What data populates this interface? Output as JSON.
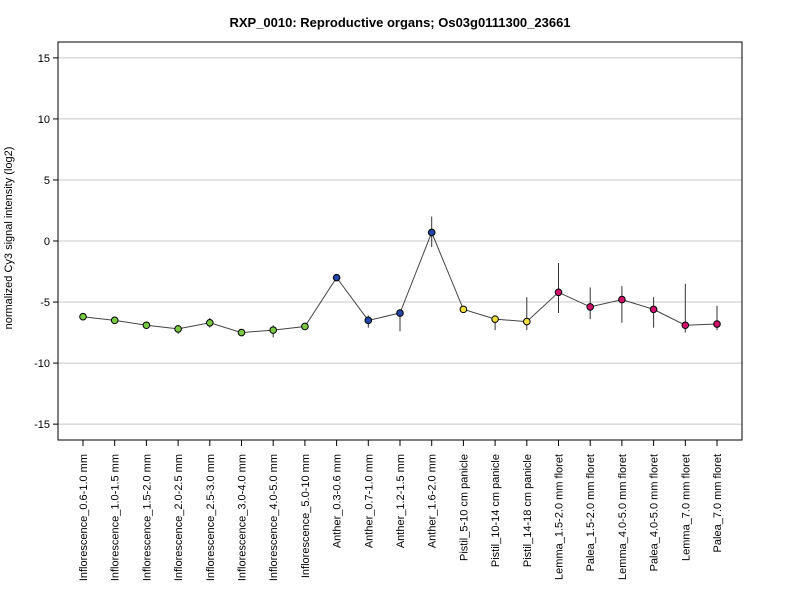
{
  "chart_data": {
    "type": "line",
    "title": "RXP_0010: Reproductive organs; Os03g0111300_23661",
    "ylabel": "normalized Cy3 signal intensity (log2)",
    "xlabel": "",
    "ylim": [
      -16.3,
      16.3
    ],
    "yticks": [
      -15,
      -10,
      -5,
      0,
      5,
      10,
      15
    ],
    "grid": true,
    "categories": [
      "Inflorescence_0.6-1.0 mm",
      "Inflorescence_1.0-1.5 mm",
      "Inflorescence_1.5-2.0 mm",
      "Inflorescence_2.0-2.5 mm",
      "Inflorescence_2.5-3.0 mm",
      "Inflorescence_3.0-4.0 mm",
      "Inflorescence_4.0-5.0 mm",
      "Inflorescence_5.0-10 mm",
      "Anther_0.3-0.6 mm",
      "Anther_0.7-1.0 mm",
      "Anther_1.2-1.5 mm",
      "Anther_1.6-2.0 mm",
      "Pistil_5-10 cm panicle",
      "Pistil_10-14 cm panicle",
      "Pistil_14-18 cm panicle",
      "Lemma_1.5-2.0 mm floret",
      "Palea_1.5-2.0 mm floret",
      "Lemma_4.0-5.0 mm floret",
      "Palea_4.0-5.0 mm floret",
      "Lemma_7.0 mm floret",
      "Palea_7.0 mm floret"
    ],
    "values": [
      -6.2,
      -6.5,
      -6.9,
      -7.2,
      -6.7,
      -7.5,
      -7.3,
      -7.0,
      -3.0,
      -6.5,
      -5.9,
      0.7,
      -5.6,
      -6.4,
      -6.6,
      -4.2,
      -5.4,
      -4.8,
      -5.6,
      -6.9,
      -6.8
    ],
    "error_low": [
      -6.4,
      -6.7,
      -7.0,
      -7.6,
      -7.1,
      -7.6,
      -7.9,
      -7.2,
      -3.1,
      -7.1,
      -7.4,
      -0.5,
      -5.7,
      -7.3,
      -7.3,
      -5.9,
      -6.4,
      -6.7,
      -7.1,
      -7.5,
      -7.3
    ],
    "error_high": [
      -6.0,
      -6.3,
      -6.8,
      -6.9,
      -6.3,
      -7.3,
      -6.9,
      -6.8,
      -2.9,
      -6.1,
      -5.7,
      2.0,
      -5.4,
      -6.1,
      -4.6,
      -1.8,
      -3.8,
      -3.7,
      -4.6,
      -3.5,
      -5.3
    ],
    "point_colors": [
      "#7ac943",
      "#7ac943",
      "#7ac943",
      "#7ac943",
      "#7ac943",
      "#7ac943",
      "#7ac943",
      "#7ac943",
      "#2147a8",
      "#2147a8",
      "#2147a8",
      "#2147a8",
      "#f2e03a",
      "#f2e03a",
      "#f2e03a",
      "#d1126b",
      "#d1126b",
      "#d1126b",
      "#d1126b",
      "#d1126b",
      "#d1126b"
    ],
    "line_color": "#444444",
    "grid_color": "#c8c8c8"
  }
}
